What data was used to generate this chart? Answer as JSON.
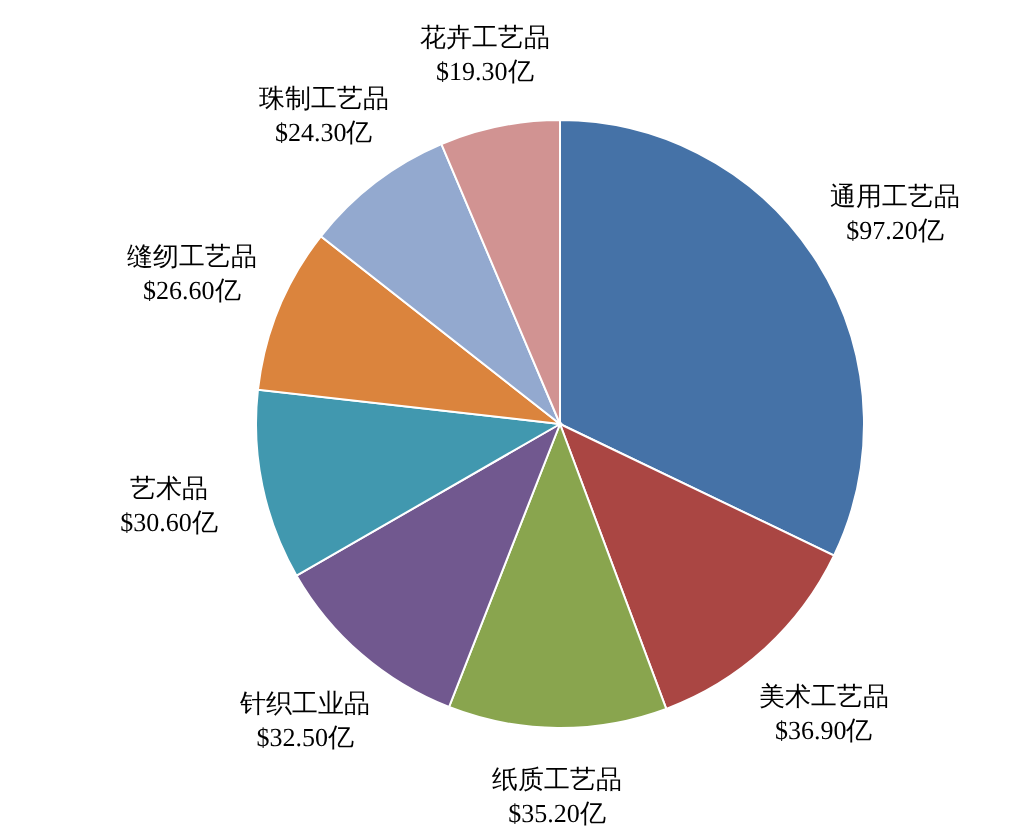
{
  "chart_data": {
    "type": "pie",
    "categories": [
      "通用工艺品",
      "美术工艺品",
      "纸质工艺品",
      "针织工业品",
      "艺术品",
      "缝纫工艺品",
      "珠制工艺品",
      "花卉工艺品"
    ],
    "values": [
      97.2,
      36.9,
      35.2,
      32.5,
      30.6,
      26.6,
      24.3,
      19.3
    ],
    "value_labels": [
      "$97.20亿",
      "$36.90亿",
      "$35.20亿",
      "$32.50亿",
      "$30.60亿",
      "$26.60亿",
      "$24.30亿",
      "$19.30亿"
    ],
    "colors": [
      "#4572a7",
      "#aa4643",
      "#89a54e",
      "#71588f",
      "#4198af",
      "#db843d",
      "#93a9cf",
      "#d19392"
    ]
  }
}
